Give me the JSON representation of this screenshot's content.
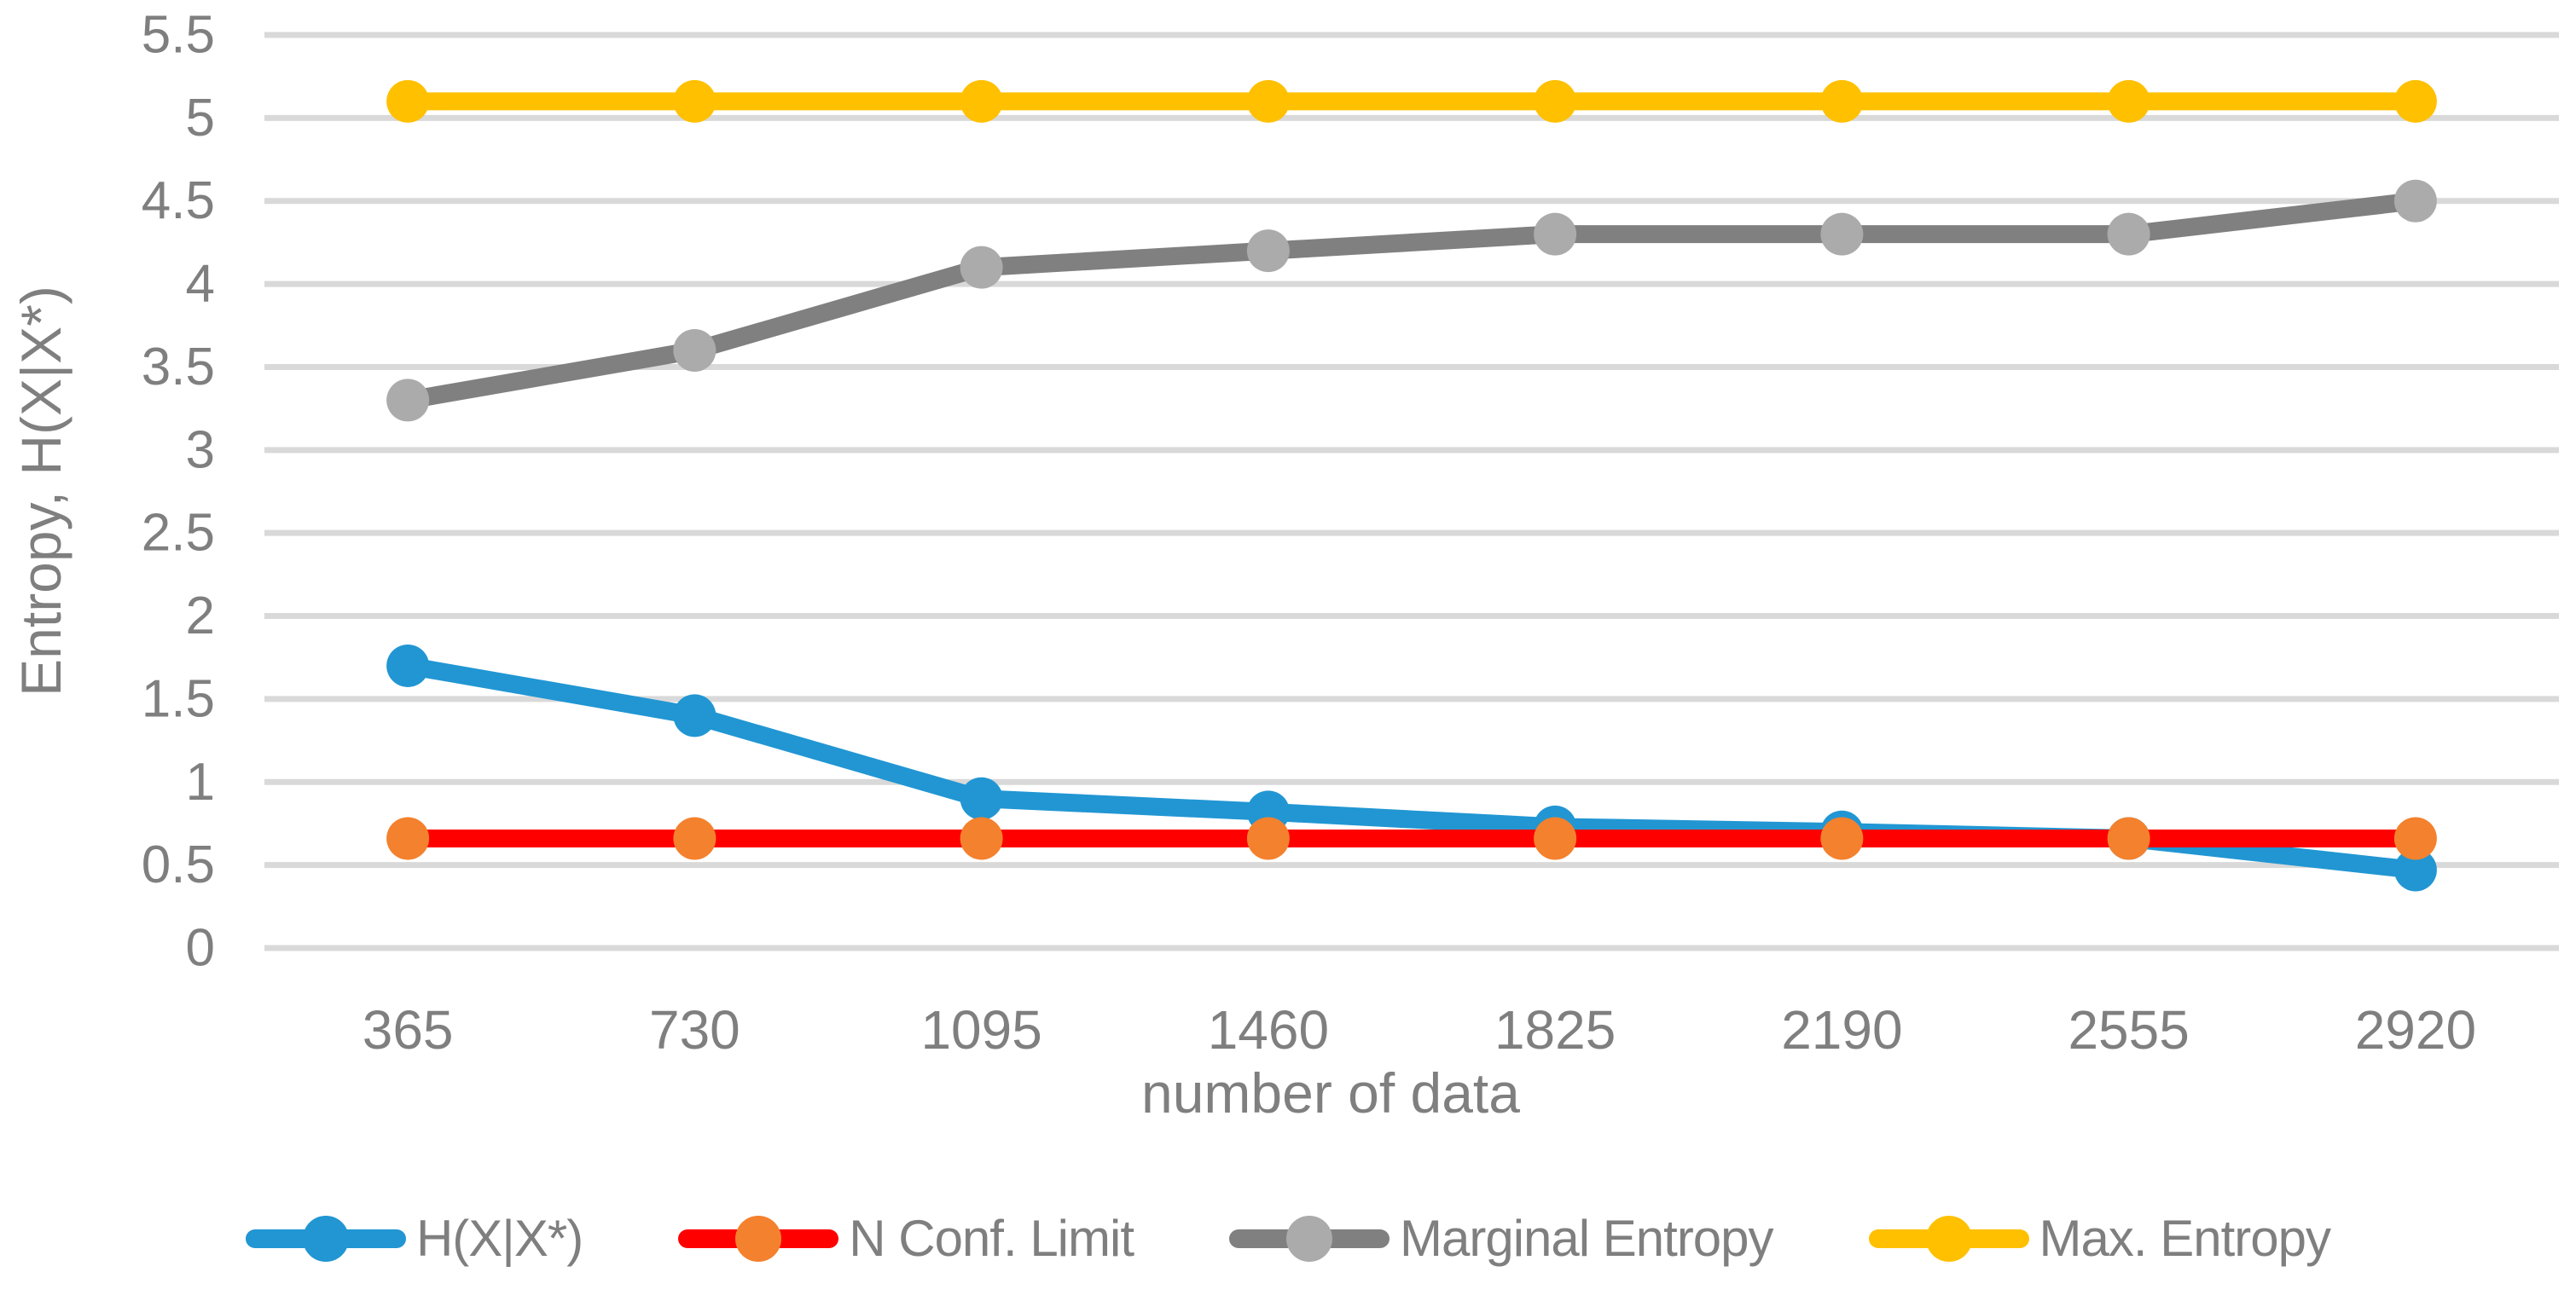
{
  "chart_data": {
    "type": "line",
    "title": "",
    "xlabel": "number of data",
    "ylabel": "Entropy, H(X|X*)",
    "categories": [
      "365",
      "730",
      "1095",
      "1460",
      "1825",
      "2190",
      "2555",
      "2920"
    ],
    "y_axis": {
      "min": 0,
      "max": 5.5,
      "step": 0.5,
      "tick_labels": [
        "0",
        "0.5",
        "1",
        "1.5",
        "2",
        "2.5",
        "3",
        "3.5",
        "4",
        "4.5",
        "5",
        "5.5"
      ]
    },
    "ylim": [
      0,
      5.5
    ],
    "grid": "horizontal-only",
    "legend_position": "bottom",
    "series": [
      {
        "name": "H(X|X*)",
        "line_color": "#2196d3",
        "marker_color": "#2196d3",
        "values": [
          1.7,
          1.4,
          0.9,
          0.82,
          0.73,
          0.7,
          0.66,
          0.47
        ]
      },
      {
        "name": "N Conf. Limit",
        "line_color": "#ff0000",
        "marker_color": "#f4812d",
        "values": [
          0.66,
          0.66,
          0.66,
          0.66,
          0.66,
          0.66,
          0.66,
          0.66
        ]
      },
      {
        "name": "Marginal Entropy",
        "line_color": "#808080",
        "marker_color": "#ababab",
        "values": [
          3.3,
          3.6,
          4.1,
          4.2,
          4.3,
          4.3,
          4.3,
          4.5
        ]
      },
      {
        "name": "Max. Entropy",
        "line_color": "#ffc000",
        "marker_color": "#ffc000",
        "values": [
          5.1,
          5.1,
          5.1,
          5.1,
          5.1,
          5.1,
          5.1,
          5.1
        ]
      }
    ],
    "colors": {
      "gridline": "#d9d9d9",
      "axis_text": "#7f7f7f"
    }
  }
}
